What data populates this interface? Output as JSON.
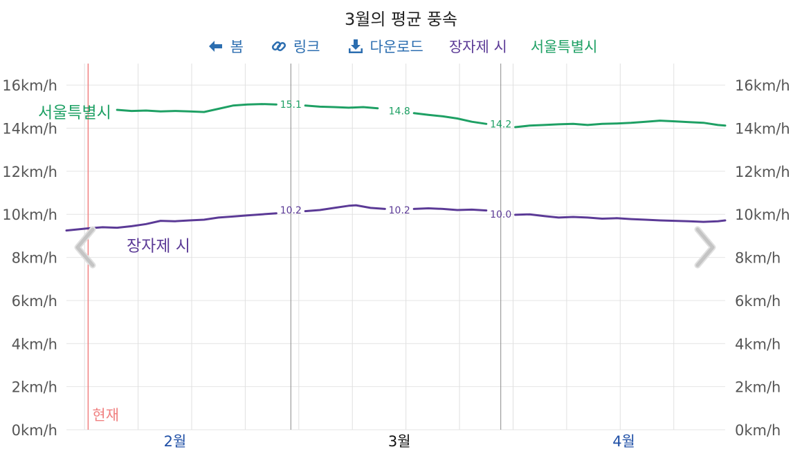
{
  "toolbar": {
    "spring_label": "봄",
    "link_label": "링크",
    "download_label": "다운로드"
  },
  "colors": {
    "station1": "#5b3a96",
    "station2": "#1ea064",
    "now": "#f08080",
    "toolbar": "#2c6eb0",
    "month_label": "#1f4fa6"
  },
  "icons": [
    "arrow-left-icon",
    "link-icon",
    "download-icon",
    "chevron-left-icon",
    "chevron-right-icon"
  ],
  "chart_data": {
    "type": "line",
    "title": "3월의 평균 풍속",
    "xlabel": "",
    "ylabel": "",
    "x_range": [
      "1월 22일",
      "4월 30일"
    ],
    "ylim": [
      0,
      17
    ],
    "y_ticks": [
      {
        "value": 0,
        "label": "0km/h"
      },
      {
        "value": 2,
        "label": "2km/h"
      },
      {
        "value": 4,
        "label": "4km/h"
      },
      {
        "value": 6,
        "label": "6km/h"
      },
      {
        "value": 8,
        "label": "8km/h"
      },
      {
        "value": 10,
        "label": "10km/h"
      },
      {
        "value": 12,
        "label": "12km/h"
      },
      {
        "value": 14,
        "label": "14km/h"
      },
      {
        "value": 16,
        "label": "16km/h"
      }
    ],
    "month_labels": [
      {
        "label": "2월",
        "day": 15,
        "highlight": false
      },
      {
        "label": "3월",
        "day": 46,
        "highlight": true
      },
      {
        "label": "4월",
        "day": 77,
        "highlight": false
      }
    ],
    "month_boundaries": [
      31,
      60
    ],
    "now_marker": {
      "label": "현재",
      "day": 3
    },
    "grid": true,
    "legend": "top-center",
    "series": [
      {
        "name": "장자제 시",
        "color": "#5b3a96",
        "values": [
          [
            0,
            9.25
          ],
          [
            3,
            9.35
          ],
          [
            5,
            9.4
          ],
          [
            7,
            9.38
          ],
          [
            9,
            9.45
          ],
          [
            11,
            9.55
          ],
          [
            13,
            9.7
          ],
          [
            15,
            9.68
          ],
          [
            17,
            9.72
          ],
          [
            19,
            9.75
          ],
          [
            21,
            9.85
          ],
          [
            23,
            9.9
          ],
          [
            25,
            9.95
          ],
          [
            27,
            10.0
          ],
          [
            29,
            10.05
          ],
          [
            31,
            10.2
          ],
          [
            33,
            10.15
          ],
          [
            35,
            10.2
          ],
          [
            37,
            10.3
          ],
          [
            39,
            10.4
          ],
          [
            40,
            10.42
          ],
          [
            42,
            10.3
          ],
          [
            44,
            10.25
          ],
          [
            46,
            10.2
          ],
          [
            48,
            10.25
          ],
          [
            50,
            10.28
          ],
          [
            52,
            10.25
          ],
          [
            54,
            10.2
          ],
          [
            56,
            10.22
          ],
          [
            58,
            10.18
          ],
          [
            60,
            10.0
          ],
          [
            62,
            9.98
          ],
          [
            64,
            10.0
          ],
          [
            66,
            9.92
          ],
          [
            68,
            9.85
          ],
          [
            70,
            9.88
          ],
          [
            72,
            9.85
          ],
          [
            74,
            9.8
          ],
          [
            76,
            9.82
          ],
          [
            78,
            9.78
          ],
          [
            80,
            9.75
          ],
          [
            82,
            9.72
          ],
          [
            84,
            9.7
          ],
          [
            86,
            9.68
          ],
          [
            88,
            9.65
          ],
          [
            90,
            9.68
          ],
          [
            91,
            9.72
          ]
        ]
      },
      {
        "name": "서울특별시",
        "color": "#1ea064",
        "values": [
          [
            7,
            14.85
          ],
          [
            9,
            14.8
          ],
          [
            11,
            14.82
          ],
          [
            13,
            14.78
          ],
          [
            15,
            14.8
          ],
          [
            17,
            14.78
          ],
          [
            19,
            14.75
          ],
          [
            21,
            14.9
          ],
          [
            23,
            15.05
          ],
          [
            25,
            15.1
          ],
          [
            27,
            15.12
          ],
          [
            29,
            15.1
          ],
          [
            31,
            15.1
          ],
          [
            33,
            15.05
          ],
          [
            35,
            15.0
          ],
          [
            37,
            14.98
          ],
          [
            39,
            14.95
          ],
          [
            41,
            14.98
          ],
          [
            43,
            14.92
          ],
          [
            46,
            14.8
          ],
          [
            48,
            14.7
          ],
          [
            50,
            14.62
          ],
          [
            52,
            14.55
          ],
          [
            54,
            14.45
          ],
          [
            56,
            14.3
          ],
          [
            58,
            14.2
          ],
          [
            60,
            14.2
          ],
          [
            62,
            14.05
          ],
          [
            64,
            14.12
          ],
          [
            66,
            14.15
          ],
          [
            68,
            14.18
          ],
          [
            70,
            14.2
          ],
          [
            72,
            14.15
          ],
          [
            74,
            14.2
          ],
          [
            76,
            14.22
          ],
          [
            78,
            14.25
          ],
          [
            80,
            14.3
          ],
          [
            82,
            14.35
          ],
          [
            84,
            14.32
          ],
          [
            86,
            14.28
          ],
          [
            88,
            14.25
          ],
          [
            90,
            14.15
          ],
          [
            91,
            14.12
          ]
        ]
      }
    ],
    "data_labels": [
      {
        "series": 0,
        "day": 31,
        "value": 10.2,
        "text": "10.2"
      },
      {
        "series": 0,
        "day": 46,
        "value": 10.2,
        "text": "10.2"
      },
      {
        "series": 0,
        "day": 60,
        "value": 10.0,
        "text": "10.0"
      },
      {
        "series": 1,
        "day": 31,
        "value": 15.1,
        "text": "15.1"
      },
      {
        "series": 1,
        "day": 46,
        "value": 14.8,
        "text": "14.8"
      },
      {
        "series": 1,
        "day": 60,
        "value": 14.2,
        "text": "14.2"
      }
    ]
  }
}
